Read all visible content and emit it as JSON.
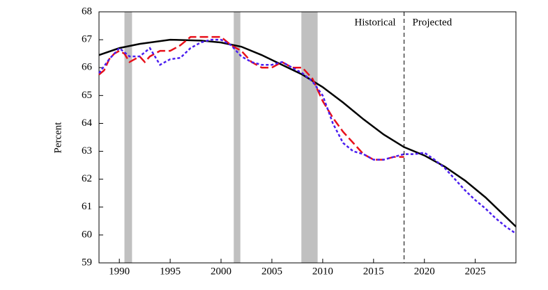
{
  "chart_data": {
    "type": "line",
    "y_label": "Percent",
    "xlim": [
      1988,
      2029
    ],
    "xticks": [
      1990,
      1995,
      2000,
      2005,
      2010,
      2015,
      2020,
      2025
    ],
    "ylim": [
      59,
      68
    ],
    "yticks": [
      59,
      60,
      61,
      62,
      63,
      64,
      65,
      66,
      67,
      68
    ],
    "shaded_ranges": [
      [
        1990.5,
        1991.25
      ],
      [
        2001.25,
        2001.9
      ],
      [
        2007.9,
        2009.5
      ]
    ],
    "shade_color": "#c0c0c0",
    "divider_x": 2018,
    "annotations": [
      "Historical",
      "Projected"
    ],
    "series": [
      {
        "color": "#000000",
        "style": "solid",
        "x": [
          1988,
          1990,
          1992,
          1995,
          1998,
          2000,
          2002,
          2004,
          2006,
          2008,
          2010,
          2012,
          2014,
          2016,
          2018,
          2020,
          2022,
          2024,
          2026,
          2028,
          2029
        ],
        "values": [
          66.45,
          66.7,
          66.85,
          67.0,
          66.97,
          66.9,
          66.75,
          66.45,
          66.1,
          65.75,
          65.3,
          64.75,
          64.15,
          63.6,
          63.15,
          62.85,
          62.45,
          61.95,
          61.35,
          60.65,
          60.3
        ]
      },
      {
        "color": "#e8101a",
        "style": "dashed",
        "x": [
          1988,
          1988.5,
          1989,
          1989.5,
          1990,
          1990.5,
          1991,
          1991.5,
          1992,
          1992.5,
          1993,
          1994,
          1995,
          1996,
          1997,
          1998,
          1999,
          2000,
          2001,
          2002,
          2003,
          2004,
          2005,
          2006,
          2007,
          2008,
          2009,
          2010,
          2011,
          2012,
          2013,
          2014,
          2015,
          2016,
          2017,
          2018
        ],
        "values": [
          65.75,
          65.9,
          66.3,
          66.5,
          66.6,
          66.5,
          66.2,
          66.3,
          66.4,
          66.2,
          66.4,
          66.6,
          66.6,
          66.8,
          67.1,
          67.1,
          67.1,
          67.1,
          66.8,
          66.6,
          66.2,
          66.0,
          66.0,
          66.2,
          66.0,
          66.0,
          65.6,
          64.8,
          64.2,
          63.7,
          63.3,
          62.9,
          62.7,
          62.7,
          62.8,
          62.8
        ]
      },
      {
        "color": "#4a1df0",
        "style": "dotted",
        "x": [
          1988,
          1989,
          1990,
          1991,
          1992,
          1993,
          1994,
          1995,
          1996,
          1997,
          1998,
          1999,
          2000,
          2001,
          2002,
          2003,
          2004,
          2005,
          2006,
          2007,
          2008,
          2009,
          2010,
          2011,
          2012,
          2013,
          2014,
          2015,
          2016,
          2017,
          2018,
          2019,
          2020,
          2021,
          2022,
          2023,
          2024,
          2025,
          2026,
          2027,
          2028,
          2029
        ],
        "values": [
          65.8,
          66.3,
          66.7,
          66.4,
          66.4,
          66.7,
          66.1,
          66.3,
          66.35,
          66.7,
          66.9,
          67.0,
          67.0,
          66.8,
          66.4,
          66.2,
          66.1,
          66.1,
          66.2,
          66.0,
          65.8,
          65.5,
          65.0,
          64.0,
          63.3,
          63.0,
          62.9,
          62.7,
          62.7,
          62.8,
          62.9,
          62.9,
          62.95,
          62.7,
          62.4,
          62.0,
          61.6,
          61.25,
          60.95,
          60.6,
          60.3,
          60.05
        ]
      }
    ]
  }
}
